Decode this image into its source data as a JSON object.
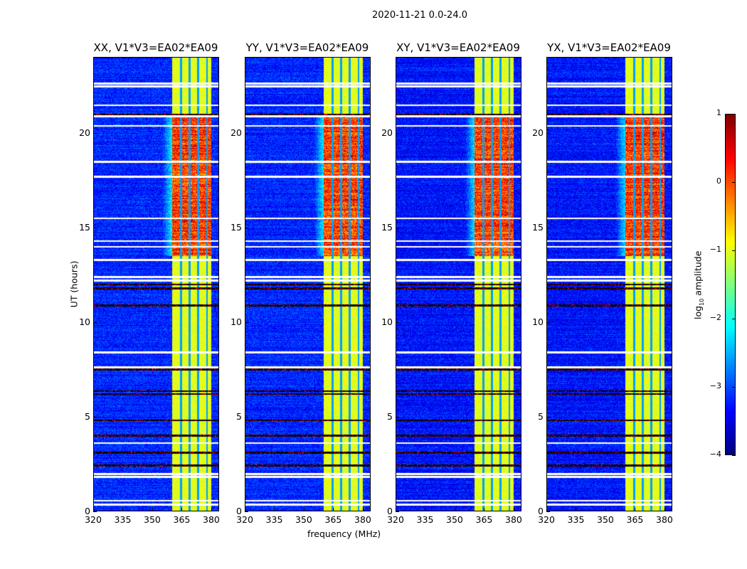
{
  "chart_data": {
    "type": "heatmap",
    "title": "2020-11-21 0.0-24.0",
    "xlabel": "frequency (MHz)",
    "ylabel": "UT (hours)",
    "xlim": [
      320,
      384
    ],
    "ylim": [
      0,
      24
    ],
    "xticks": [
      "320",
      "335",
      "350",
      "365",
      "380"
    ],
    "yticks": [
      "0",
      "5",
      "10",
      "15",
      "20"
    ],
    "panels": [
      {
        "title": "XX, V1*V3=EA02*EA09"
      },
      {
        "title": "YY, V1*V3=EA02*EA09"
      },
      {
        "title": "XY, V1*V3=EA02*EA09"
      },
      {
        "title": "YX, V1*V3=EA02*EA09"
      }
    ],
    "colorbar": {
      "label_prefix": "log",
      "label_sub": "10",
      "label_suffix": " amplitude",
      "range": [
        -4,
        1
      ],
      "ticks": [
        "1",
        "0",
        "−1",
        "−2",
        "−3",
        "−4"
      ],
      "colormap": "jet"
    },
    "features": {
      "background_level": -3.2,
      "rfi_band_mhz": [
        360,
        380
      ],
      "rfi_subband_gaps_mhz": [
        364.5,
        369,
        373.5,
        378
      ],
      "rfi_level_quiet": -1.0,
      "rfi_level_active": 0.1,
      "rfi_active_hours": [
        13.5,
        21
      ],
      "flagged_white_hours": [
        0.35,
        0.55,
        1.8,
        1.95,
        3.6,
        7.6,
        8.4,
        12.2,
        12.4,
        13.3,
        14.0,
        14.3,
        15.5,
        17.7,
        18.5,
        20.4,
        20.9,
        21.5,
        22.5,
        22.65
      ],
      "flagged_black_hours": [
        2.4,
        3.1,
        4.0,
        4.8,
        6.2,
        6.35,
        7.5,
        10.9,
        11.8,
        12.0,
        21.0
      ]
    }
  }
}
